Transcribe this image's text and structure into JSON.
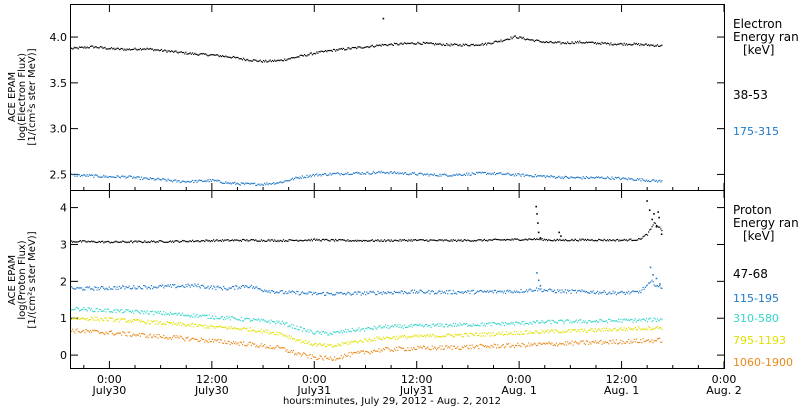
{
  "xaxis": {
    "title": "hours:minutes, July 29, 2012 - Aug.  2, 2012",
    "ticks": [
      {
        "time": "0:00",
        "date": "July30",
        "hours": 24
      },
      {
        "time": "12:00",
        "date": "July30",
        "hours": 36
      },
      {
        "time": "0:00",
        "date": "July31",
        "hours": 48
      },
      {
        "time": "12:00",
        "date": "July31",
        "hours": 60
      },
      {
        "time": "0:00",
        "date": "Aug. 1",
        "hours": 72
      },
      {
        "time": "12:00",
        "date": "Aug. 1",
        "hours": 84
      },
      {
        "time": "0:00",
        "date": "Aug. 2",
        "hours": 96
      }
    ]
  },
  "chart_data": [
    {
      "type": "scatter",
      "panel": "electron",
      "ylabel_lines": [
        "ACE EPAM",
        "log(Electron Flux)",
        "[1/(cm²s ster MeV)]"
      ],
      "legend_title_lines": [
        "Electron",
        "Energy ran",
        "[keV]"
      ],
      "xlim_hours": [
        19.5,
        96
      ],
      "ylim": [
        2.33,
        4.35
      ],
      "yticks": [
        "2.5",
        "3.0",
        "3.5",
        "4.0"
      ],
      "yticks_values": [
        2.5,
        3.0,
        3.5,
        4.0
      ],
      "series": [
        {
          "name": "38-53",
          "color": "#000000",
          "noise": 0.012,
          "points": [
            [
              19.5,
              3.88
            ],
            [
              22,
              3.9
            ],
            [
              24,
              3.88
            ],
            [
              26,
              3.87
            ],
            [
              28,
              3.88
            ],
            [
              30,
              3.86
            ],
            [
              32,
              3.84
            ],
            [
              34,
              3.82
            ],
            [
              36,
              3.81
            ],
            [
              38,
              3.79
            ],
            [
              40,
              3.76
            ],
            [
              42,
              3.74
            ],
            [
              44,
              3.75
            ],
            [
              46,
              3.79
            ],
            [
              48,
              3.83
            ],
            [
              50,
              3.86
            ],
            [
              52,
              3.88
            ],
            [
              54,
              3.9
            ],
            [
              56,
              3.92
            ],
            [
              58,
              3.93
            ],
            [
              60,
              3.94
            ],
            [
              62,
              3.93
            ],
            [
              64,
              3.92
            ],
            [
              66,
              3.92
            ],
            [
              68,
              3.93
            ],
            [
              70,
              3.97
            ],
            [
              71.5,
              4.01
            ],
            [
              73,
              3.98
            ],
            [
              75,
              3.95
            ],
            [
              77,
              3.94
            ],
            [
              79,
              3.95
            ],
            [
              81,
              3.94
            ],
            [
              83,
              3.93
            ],
            [
              85,
              3.93
            ],
            [
              87,
              3.92
            ],
            [
              88.7,
              3.91
            ]
          ],
          "extra_points": [
            [
              56,
              4.21
            ]
          ]
        },
        {
          "name": "175-315",
          "color": "#1f78c8",
          "noise": 0.014,
          "points": [
            [
              19.5,
              2.5
            ],
            [
              22,
              2.49
            ],
            [
              24,
              2.48
            ],
            [
              26,
              2.48
            ],
            [
              28,
              2.46
            ],
            [
              30,
              2.45
            ],
            [
              32,
              2.43
            ],
            [
              34,
              2.43
            ],
            [
              36,
              2.44
            ],
            [
              38,
              2.41
            ],
            [
              40,
              2.4
            ],
            [
              42,
              2.4
            ],
            [
              44,
              2.42
            ],
            [
              46,
              2.47
            ],
            [
              48,
              2.5
            ],
            [
              50,
              2.51
            ],
            [
              52,
              2.52
            ],
            [
              54,
              2.52
            ],
            [
              56,
              2.53
            ],
            [
              58,
              2.52
            ],
            [
              60,
              2.51
            ],
            [
              62,
              2.5
            ],
            [
              64,
              2.5
            ],
            [
              66,
              2.51
            ],
            [
              68,
              2.52
            ],
            [
              70,
              2.51
            ],
            [
              72,
              2.5
            ],
            [
              74,
              2.49
            ],
            [
              76,
              2.48
            ],
            [
              78,
              2.47
            ],
            [
              80,
              2.47
            ],
            [
              82,
              2.47
            ],
            [
              84,
              2.46
            ],
            [
              86,
              2.45
            ],
            [
              88.7,
              2.43
            ]
          ],
          "extra_points": []
        }
      ]
    },
    {
      "type": "scatter",
      "panel": "proton",
      "ylabel_lines": [
        "ACE EPAM",
        "log(Proton Flux)",
        "[1/(cm²s ster MeV)]"
      ],
      "legend_title_lines": [
        "Proton",
        "Energy ran",
        "[keV]"
      ],
      "xlim_hours": [
        19.5,
        96
      ],
      "ylim": [
        -0.35,
        4.45
      ],
      "yticks": [
        "0",
        "1",
        "2",
        "3",
        "4"
      ],
      "yticks_values": [
        0,
        1,
        2,
        3,
        4
      ],
      "series": [
        {
          "name": "47-68",
          "color": "#000000",
          "noise": 0.025,
          "points": [
            [
              19.5,
              3.1
            ],
            [
              24,
              3.08
            ],
            [
              28,
              3.09
            ],
            [
              32,
              3.1
            ],
            [
              36,
              3.12
            ],
            [
              40,
              3.13
            ],
            [
              44,
              3.12
            ],
            [
              48,
              3.14
            ],
            [
              52,
              3.12
            ],
            [
              56,
              3.12
            ],
            [
              60,
              3.13
            ],
            [
              64,
              3.12
            ],
            [
              68,
              3.13
            ],
            [
              72,
              3.15
            ],
            [
              74,
              3.16
            ],
            [
              76,
              3.13
            ],
            [
              80,
              3.14
            ],
            [
              84,
              3.13
            ],
            [
              86,
              3.15
            ],
            [
              87,
              3.3
            ],
            [
              87.8,
              3.6
            ],
            [
              88.7,
              3.4
            ]
          ],
          "extra_points": [
            [
              73.9,
              4.05
            ],
            [
              74.0,
              3.85
            ],
            [
              74.1,
              3.6
            ],
            [
              74.2,
              3.35
            ],
            [
              74.4,
              3.2
            ],
            [
              76.6,
              3.35
            ],
            [
              76.8,
              3.25
            ],
            [
              86.9,
              4.2
            ],
            [
              87.2,
              3.95
            ],
            [
              87.5,
              3.7
            ],
            [
              87.7,
              3.85
            ],
            [
              88,
              3.5
            ],
            [
              88.3,
              3.75
            ],
            [
              88.6,
              3.3
            ],
            [
              88.2,
              3.9
            ]
          ]
        },
        {
          "name": "115-195",
          "color": "#1f78c8",
          "noise": 0.05,
          "points": [
            [
              19.5,
              1.82
            ],
            [
              22,
              1.82
            ],
            [
              26,
              1.85
            ],
            [
              30,
              1.87
            ],
            [
              34,
              1.9
            ],
            [
              36,
              1.85
            ],
            [
              38,
              1.82
            ],
            [
              40,
              1.9
            ],
            [
              42,
              1.78
            ],
            [
              44,
              1.72
            ],
            [
              46,
              1.7
            ],
            [
              48,
              1.68
            ],
            [
              52,
              1.68
            ],
            [
              56,
              1.71
            ],
            [
              60,
              1.73
            ],
            [
              64,
              1.72
            ],
            [
              68,
              1.73
            ],
            [
              72,
              1.75
            ],
            [
              74,
              1.8
            ],
            [
              76,
              1.75
            ],
            [
              80,
              1.73
            ],
            [
              84,
              1.7
            ],
            [
              86,
              1.72
            ],
            [
              87.5,
              2.0
            ],
            [
              88.7,
              1.8
            ]
          ],
          "extra_points": [
            [
              74.0,
              2.25
            ],
            [
              74.2,
              2.05
            ],
            [
              74.4,
              1.9
            ],
            [
              87.3,
              2.4
            ],
            [
              87.6,
              2.2
            ],
            [
              88,
              2.1
            ],
            [
              88.4,
              1.95
            ]
          ]
        },
        {
          "name": "310-580",
          "color": "#33d6c8",
          "noise": 0.05,
          "points": [
            [
              19.5,
              1.28
            ],
            [
              24,
              1.22
            ],
            [
              28,
              1.18
            ],
            [
              32,
              1.12
            ],
            [
              36,
              1.05
            ],
            [
              40,
              0.98
            ],
            [
              44,
              0.9
            ],
            [
              46,
              0.75
            ],
            [
              48,
              0.62
            ],
            [
              50,
              0.6
            ],
            [
              52,
              0.68
            ],
            [
              54,
              0.72
            ],
            [
              56,
              0.78
            ],
            [
              60,
              0.8
            ],
            [
              64,
              0.83
            ],
            [
              68,
              0.85
            ],
            [
              72,
              0.88
            ],
            [
              76,
              0.92
            ],
            [
              80,
              0.93
            ],
            [
              84,
              0.95
            ],
            [
              88.7,
              0.98
            ]
          ],
          "extra_points": []
        },
        {
          "name": "795-1193",
          "color": "#e0e000",
          "noise": 0.05,
          "points": [
            [
              19.5,
              1.02
            ],
            [
              24,
              0.98
            ],
            [
              28,
              0.92
            ],
            [
              32,
              0.85
            ],
            [
              36,
              0.78
            ],
            [
              40,
              0.72
            ],
            [
              44,
              0.6
            ],
            [
              46,
              0.42
            ],
            [
              48,
              0.3
            ],
            [
              50,
              0.25
            ],
            [
              52,
              0.35
            ],
            [
              54,
              0.42
            ],
            [
              56,
              0.48
            ],
            [
              60,
              0.52
            ],
            [
              64,
              0.55
            ],
            [
              68,
              0.58
            ],
            [
              72,
              0.62
            ],
            [
              76,
              0.66
            ],
            [
              80,
              0.68
            ],
            [
              84,
              0.72
            ],
            [
              88.7,
              0.76
            ]
          ],
          "extra_points": []
        },
        {
          "name": "1060-1900",
          "color": "#e88a1a",
          "noise": 0.06,
          "points": [
            [
              19.5,
              0.68
            ],
            [
              24,
              0.62
            ],
            [
              28,
              0.55
            ],
            [
              32,
              0.48
            ],
            [
              36,
              0.4
            ],
            [
              40,
              0.32
            ],
            [
              44,
              0.2
            ],
            [
              46,
              0.05
            ],
            [
              48,
              -0.05
            ],
            [
              50,
              -0.08
            ],
            [
              52,
              0.02
            ],
            [
              54,
              0.1
            ],
            [
              56,
              0.16
            ],
            [
              60,
              0.2
            ],
            [
              64,
              0.22
            ],
            [
              68,
              0.25
            ],
            [
              72,
              0.28
            ],
            [
              76,
              0.32
            ],
            [
              80,
              0.35
            ],
            [
              84,
              0.38
            ],
            [
              88.7,
              0.42
            ]
          ],
          "extra_points": []
        }
      ]
    }
  ]
}
